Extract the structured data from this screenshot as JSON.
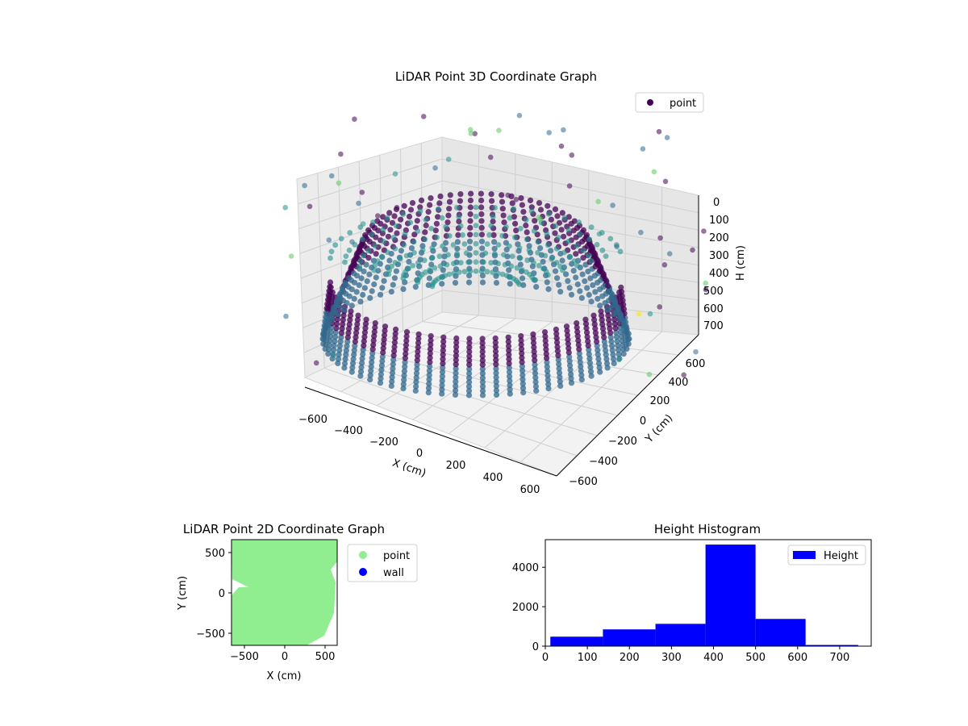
{
  "colors": {
    "viridis_dark": "#440154",
    "viridis_mid": "#31688e",
    "viridis_teal": "#21918c",
    "viridis_green": "#5ec962",
    "viridis_yellow": "#fde725",
    "point_2d": "#90ee90",
    "wall_2d": "#0000ff",
    "hist_bar": "#0000ff"
  },
  "chart_data": [
    {
      "type": "scatter",
      "projection": "3d",
      "title": "LiDAR Point 3D Coordinate Graph",
      "xlabel": "X (cm)",
      "ylabel": "Y (cm)",
      "zlabel": "H (cm)",
      "xticks": [
        "−600",
        "−400",
        "−200",
        "0",
        "200",
        "400",
        "600"
      ],
      "yticks": [
        "−600",
        "−400",
        "−200",
        "0",
        "200",
        "400",
        "600"
      ],
      "zticks": [
        "0",
        "100",
        "200",
        "300",
        "400",
        "500",
        "600",
        "700"
      ],
      "xlim": [
        -650,
        650
      ],
      "ylim": [
        -650,
        650
      ],
      "zlim": [
        0,
        780
      ],
      "z_axis_inverted": true,
      "colormap": "viridis",
      "legend": {
        "placement": "top-right",
        "entries": [
          "point"
        ]
      },
      "grid": true
    },
    {
      "type": "scatter",
      "title": "LiDAR Point 2D Coordinate Graph",
      "xlabel": "X (cm)",
      "ylabel": "Y (cm)",
      "xticks": [
        "−500",
        "0",
        "500"
      ],
      "yticks": [
        "−500",
        "0",
        "500"
      ],
      "xlim": [
        -650,
        650
      ],
      "ylim": [
        -650,
        650
      ],
      "legend": {
        "placement": "outside-right",
        "entries": [
          "point",
          "wall"
        ]
      },
      "grid": false
    },
    {
      "type": "bar",
      "title": "Height Histogram",
      "xlabel": "",
      "ylabel": "",
      "xticks": [
        "0",
        "100",
        "200",
        "300",
        "400",
        "500",
        "600",
        "700"
      ],
      "yticks": [
        "0",
        "2000",
        "4000"
      ],
      "xlim": [
        0,
        775
      ],
      "ylim": [
        0,
        5400
      ],
      "bins": [
        {
          "start": 12,
          "end": 137,
          "count": 480
        },
        {
          "start": 137,
          "end": 262,
          "count": 850
        },
        {
          "start": 262,
          "end": 381,
          "count": 1130
        },
        {
          "start": 381,
          "end": 500,
          "count": 5150
        },
        {
          "start": 500,
          "end": 619,
          "count": 1380
        },
        {
          "start": 619,
          "end": 744,
          "count": 60
        },
        {
          "start": 744,
          "end": 775,
          "count": 20
        }
      ],
      "legend": {
        "placement": "top-right",
        "entries": [
          "Height"
        ]
      },
      "grid": false
    }
  ]
}
